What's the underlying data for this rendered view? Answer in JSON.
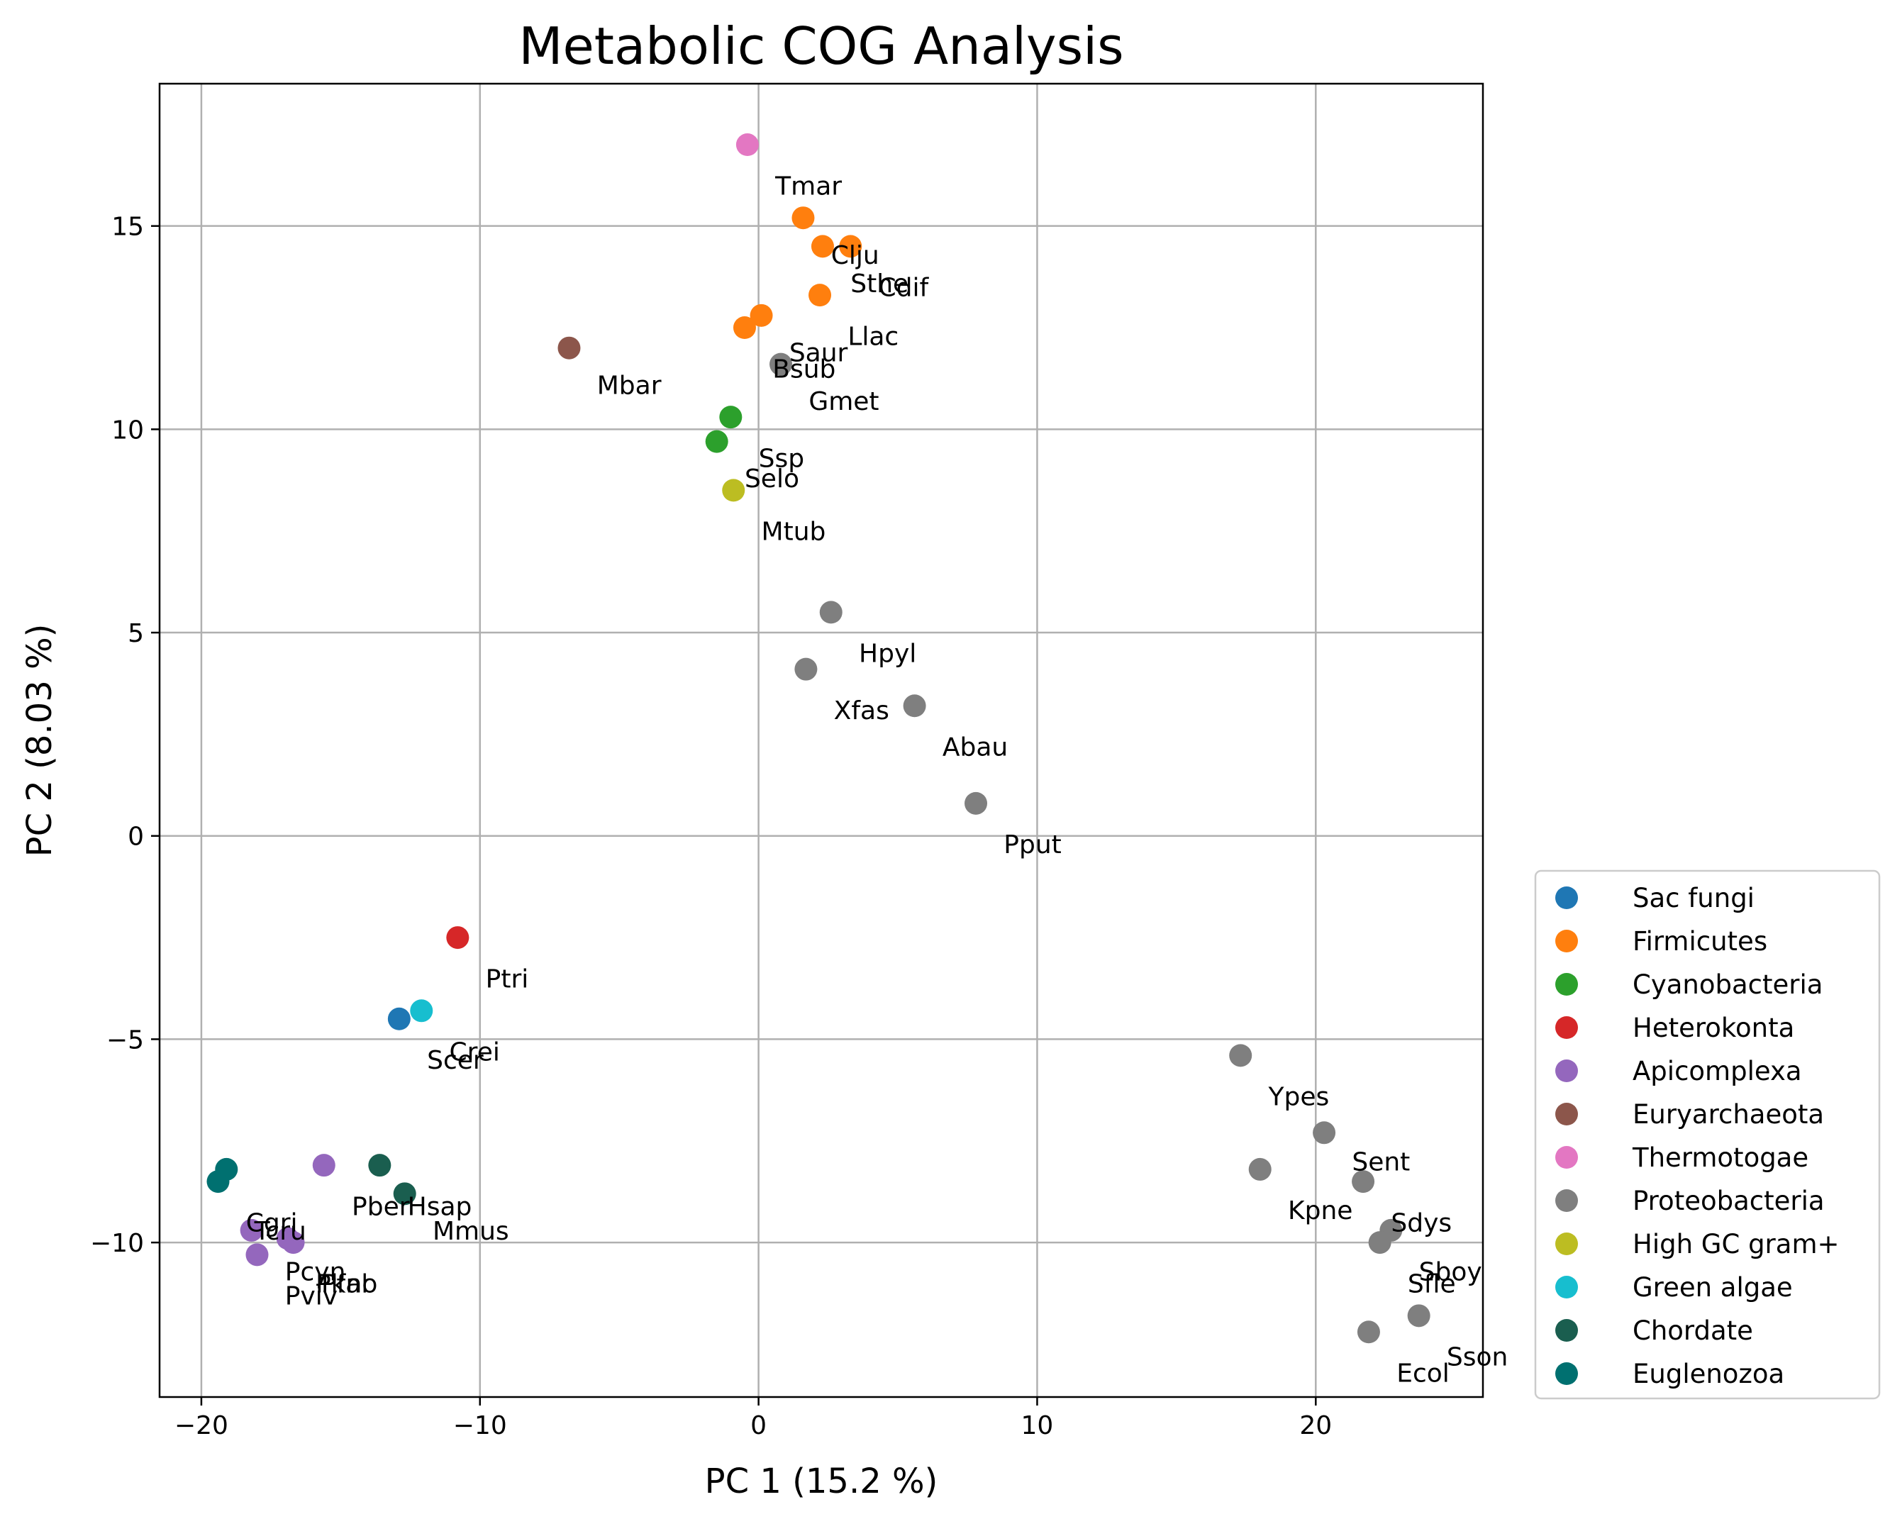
{
  "chart_data": {
    "type": "scatter",
    "title": "Metabolic COG Analysis",
    "xlabel": "PC 1 (15.2 %)",
    "ylabel": "PC 2 (8.03 %)",
    "xlim": [
      -21.5,
      26
    ],
    "ylim": [
      -13.8,
      18.5
    ],
    "xticks": [
      -20,
      -10,
      0,
      10,
      20
    ],
    "yticks": [
      -10,
      -5,
      0,
      5,
      10,
      15
    ],
    "grid": true,
    "legend_position": "outside right, bottom",
    "series": [
      {
        "name": "Sac fungi",
        "color": "#1f77b4",
        "points": [
          {
            "x": -12.9,
            "y": -4.5,
            "label": "Scer"
          }
        ]
      },
      {
        "name": "Firmicutes",
        "color": "#ff7f0e",
        "points": [
          {
            "x": 1.6,
            "y": 15.2,
            "label": "Clju"
          },
          {
            "x": 2.3,
            "y": 14.5,
            "label": "Sthe"
          },
          {
            "x": 3.3,
            "y": 14.5,
            "label": "Cdif"
          },
          {
            "x": 2.2,
            "y": 13.3,
            "label": "Llac"
          },
          {
            "x": 0.1,
            "y": 12.8,
            "label": "Bsub"
          },
          {
            "x": -0.5,
            "y": 12.5,
            "label": "Saur"
          }
        ]
      },
      {
        "name": "Cyanobacteria",
        "color": "#2ca02c",
        "points": [
          {
            "x": -1.0,
            "y": 10.3,
            "label": "Ssp"
          },
          {
            "x": -1.5,
            "y": 9.7,
            "label": "Selo"
          }
        ]
      },
      {
        "name": "Heterokonta",
        "color": "#d62728",
        "points": [
          {
            "x": -10.8,
            "y": -2.5,
            "label": "Ptri"
          }
        ]
      },
      {
        "name": "Apicomplexa",
        "color": "#9467bd",
        "points": [
          {
            "x": -15.6,
            "y": -8.1,
            "label": "Pfal"
          },
          {
            "x": -18.2,
            "y": -9.7,
            "label": "Tpar"
          },
          {
            "x": -18.0,
            "y": -10.3,
            "label": "Pviv"
          },
          {
            "x": -16.9,
            "y": -9.9,
            "label": "Pcyn"
          },
          {
            "x": -16.7,
            "y": -10.0,
            "label": "Pkno"
          }
        ]
      },
      {
        "name": "Euryarchaeota",
        "color": "#8c564b",
        "points": [
          {
            "x": -6.8,
            "y": 12.0,
            "label": "Mbar"
          }
        ]
      },
      {
        "name": "Thermotogae",
        "color": "#e377c2",
        "points": [
          {
            "x": -0.4,
            "y": 17.0,
            "label": "Tmar"
          }
        ]
      },
      {
        "name": "Proteobacteria",
        "color": "#7f7f7f",
        "points": [
          {
            "x": 0.8,
            "y": 11.6,
            "label": "Gmet"
          },
          {
            "x": 2.6,
            "y": 5.5,
            "label": "Hpyl"
          },
          {
            "x": 1.7,
            "y": 4.1,
            "label": "Xfas"
          },
          {
            "x": 5.6,
            "y": 3.2,
            "label": "Abau"
          },
          {
            "x": 7.8,
            "y": 0.8,
            "label": "Pput"
          },
          {
            "x": 17.3,
            "y": -5.4,
            "label": "Ypes"
          },
          {
            "x": 20.3,
            "y": -7.3,
            "label": "Sent"
          },
          {
            "x": 18.0,
            "y": -8.2,
            "label": "Kpne"
          },
          {
            "x": 21.7,
            "y": -8.5,
            "label": "Sdys"
          },
          {
            "x": 22.7,
            "y": -9.7,
            "label": "Sboy"
          },
          {
            "x": 22.3,
            "y": -10.0,
            "label": "Sfle"
          },
          {
            "x": 23.7,
            "y": -11.8,
            "label": "Sson"
          },
          {
            "x": 21.9,
            "y": -12.2,
            "label": "Ecol"
          }
        ]
      },
      {
        "name": "High GC gram+",
        "color": "#bcbd22",
        "points": [
          {
            "x": -0.9,
            "y": 8.5,
            "label": "Mtub"
          }
        ]
      },
      {
        "name": "Green algae",
        "color": "#17becf",
        "points": [
          {
            "x": -12.1,
            "y": -4.3,
            "label": "Crei"
          }
        ]
      },
      {
        "name": "Chordate",
        "color": "#1a5e4f",
        "points": [
          {
            "x": -13.6,
            "y": -8.1,
            "label": "Hsap"
          },
          {
            "x": -12.7,
            "y": -8.8,
            "label": "Mmus"
          }
        ]
      },
      {
        "name": "Euglenozoa",
        "color": "#007070",
        "points": [
          {
            "x": -19.1,
            "y": -8.2,
            "label": "Tcru"
          },
          {
            "x": -19.4,
            "y": -8.5,
            "label": "Cgri"
          }
        ]
      }
    ],
    "point_labels": [
      {
        "text": "Tmar",
        "x": 0.6,
        "y": 16.0
      },
      {
        "text": "Clju",
        "x": 2.6,
        "y": 14.3
      },
      {
        "text": "Sthe",
        "x": 3.3,
        "y": 13.6
      },
      {
        "text": "Cdif",
        "x": 4.3,
        "y": 13.5
      },
      {
        "text": "Llac",
        "x": 3.2,
        "y": 12.3
      },
      {
        "text": "Saur",
        "x": 1.1,
        "y": 11.9
      },
      {
        "text": "Bsub",
        "x": 0.5,
        "y": 11.5
      },
      {
        "text": "Gmet",
        "x": 1.8,
        "y": 10.7
      },
      {
        "text": "Mbar",
        "x": -5.8,
        "y": 11.1
      },
      {
        "text": "Ssp",
        "x": 0.0,
        "y": 9.3
      },
      {
        "text": "Selo",
        "x": -0.5,
        "y": 8.8
      },
      {
        "text": "Mtub",
        "x": 0.1,
        "y": 7.5
      },
      {
        "text": "Hpyl",
        "x": 3.6,
        "y": 4.5
      },
      {
        "text": "Xfas",
        "x": 2.7,
        "y": 3.1
      },
      {
        "text": "Abau",
        "x": 6.6,
        "y": 2.2
      },
      {
        "text": "Pput",
        "x": 8.8,
        "y": -0.2
      },
      {
        "text": "Ptri",
        "x": -9.8,
        "y": -3.5
      },
      {
        "text": "Crei",
        "x": -11.1,
        "y": -5.3
      },
      {
        "text": "Scer",
        "x": -11.9,
        "y": -5.5
      },
      {
        "text": "Ypes",
        "x": 18.3,
        "y": -6.4
      },
      {
        "text": "Sent",
        "x": 21.3,
        "y": -8.0
      },
      {
        "text": "Kpne",
        "x": 19.0,
        "y": -9.2
      },
      {
        "text": "Sdys",
        "x": 22.7,
        "y": -9.5
      },
      {
        "text": "Sboy",
        "x": 23.7,
        "y": -10.7
      },
      {
        "text": "Sfle",
        "x": 23.3,
        "y": -11.0
      },
      {
        "text": "Sson",
        "x": 24.7,
        "y": -12.8
      },
      {
        "text": "Ecol",
        "x": 22.9,
        "y": -13.2
      },
      {
        "text": "Cgri",
        "x": -18.4,
        "y": -9.5
      },
      {
        "text": "Tcru",
        "x": -18.1,
        "y": -9.7
      },
      {
        "text": "Pber",
        "x": -14.6,
        "y": -9.1
      },
      {
        "text": "Hsap",
        "x": -12.6,
        "y": -9.1
      },
      {
        "text": "Mmus",
        "x": -11.7,
        "y": -9.7
      },
      {
        "text": "Pcyn",
        "x": -17.0,
        "y": -10.7
      },
      {
        "text": "Pkno",
        "x": -15.9,
        "y": -11.0
      },
      {
        "text": "Pfal",
        "x": -15.7,
        "y": -11.0
      },
      {
        "text": "Pviv",
        "x": -17.0,
        "y": -11.3
      }
    ]
  }
}
